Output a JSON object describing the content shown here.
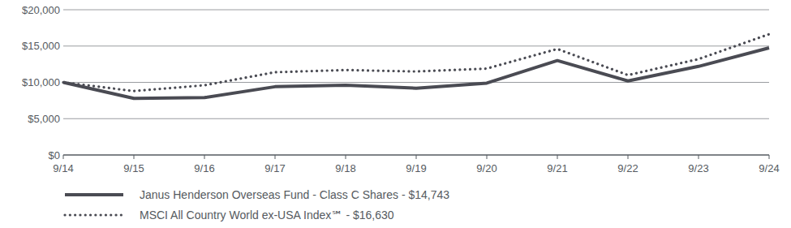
{
  "chart_data": {
    "type": "line",
    "categories": [
      "9/14",
      "9/15",
      "9/16",
      "9/17",
      "9/18",
      "9/19",
      "9/20",
      "9/21",
      "9/22",
      "9/23",
      "9/24"
    ],
    "series": [
      {
        "name": "Janus Henderson Overseas Fund - Class C Shares - $14,743",
        "color": "#4a4b53",
        "line_style": "solid",
        "values": [
          10000,
          7800,
          7900,
          9400,
          9600,
          9200,
          9900,
          13000,
          10200,
          12200,
          14743
        ]
      },
      {
        "name": "MSCI All Country World ex-USA Index℠ - $16,630",
        "color": "#4a4b53",
        "line_style": "dotted",
        "values": [
          10000,
          8800,
          9600,
          11400,
          11700,
          11500,
          11900,
          14600,
          11000,
          13200,
          16630
        ]
      }
    ],
    "ylim": [
      0,
      20000
    ],
    "yticks": [
      {
        "value": 0,
        "label": "$0"
      },
      {
        "value": 5000,
        "label": "$5,000"
      },
      {
        "value": 10000,
        "label": "$10,000"
      },
      {
        "value": 15000,
        "label": "$15,000"
      },
      {
        "value": 20000,
        "label": "$20,000"
      }
    ],
    "grid": true,
    "legend": "bottom"
  }
}
